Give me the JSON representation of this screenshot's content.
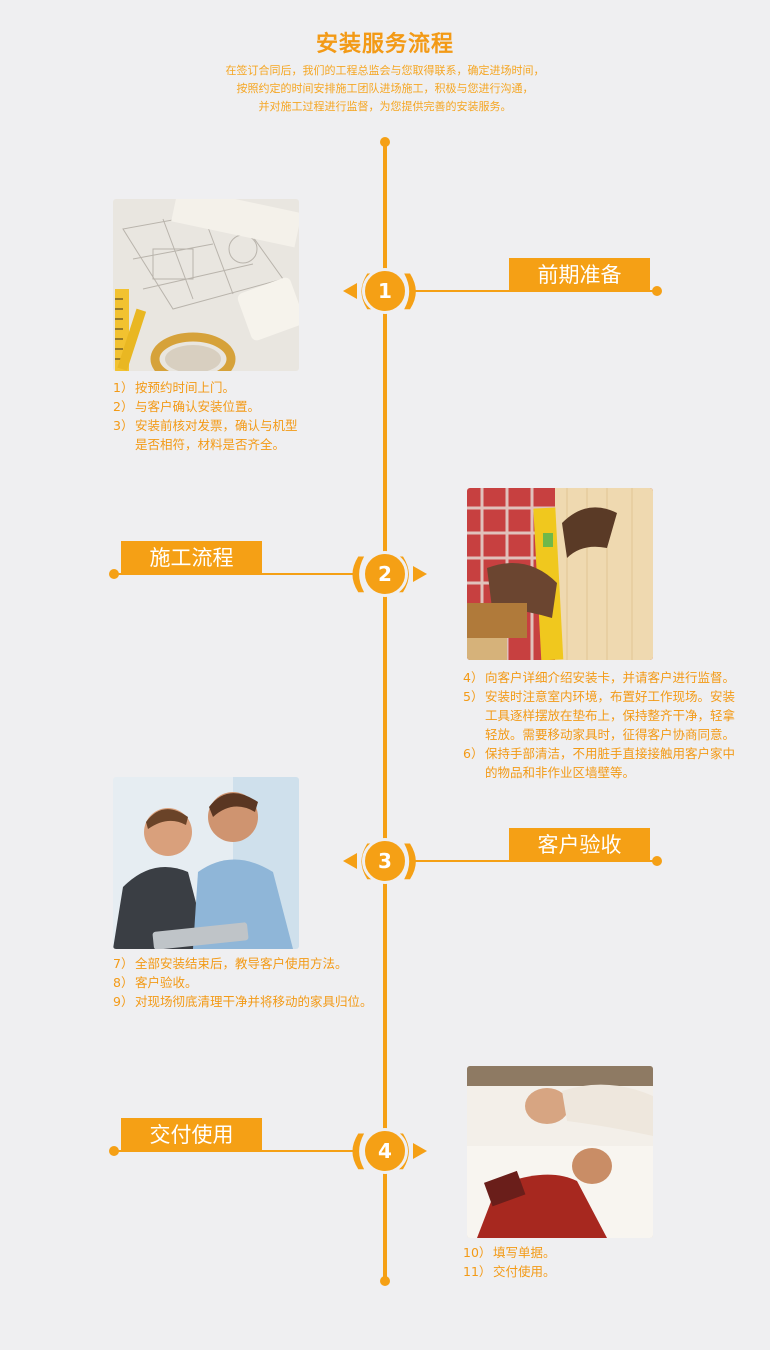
{
  "header": {
    "title": "安装服务流程",
    "intro": [
      "在签订合同后，我们的工程总监会与您取得联系，确定进场时间，",
      "按照约定的时间安排施工团队进场施工，积极与您进行沟通，",
      "并对施工过程进行监督，为您提供完善的安装服务。"
    ]
  },
  "stages": [
    {
      "num": "1",
      "label": "前期准备",
      "photo": "blueprints-photo",
      "steps": [
        {
          "n": "1）",
          "t": "按预约时间上门。"
        },
        {
          "n": "2）",
          "t": "与客户确认安装位置。"
        },
        {
          "n": "3）",
          "t": "安装前核对发票，确认与机型\n是否相符，材料是否齐全。"
        }
      ]
    },
    {
      "num": "2",
      "label": "施工流程",
      "photo": "worker-gloves-photo",
      "steps": [
        {
          "n": "4）",
          "t": "向客户详细介绍安装卡，并请客户进行监督。"
        },
        {
          "n": "5）",
          "t": "安装时注意室内环境，布置好工作现场。安装\n工具逐样摆放在垫布上，保持整齐干净，轻拿\n轻放。需要移动家具时，征得客户协商同意。"
        },
        {
          "n": "6）",
          "t": "保持手部清洁，不用脏手直接接触用客户家中\n的物品和非作业区墙壁等。"
        }
      ]
    },
    {
      "num": "3",
      "label": "客户验收",
      "photo": "customers-tablet-photo",
      "steps": [
        {
          "n": "7）",
          "t": "全部安装结束后，教导客户使用方法。"
        },
        {
          "n": "8）",
          "t": "客户验收。"
        },
        {
          "n": "9）",
          "t": "对现场彻底清理干净并将移动的家具归位。"
        }
      ]
    },
    {
      "num": "4",
      "label": "交付使用",
      "photo": "couple-relaxing-photo",
      "steps": [
        {
          "n": "10）",
          "t": "填写单据。"
        },
        {
          "n": "11）",
          "t": "交付使用。"
        }
      ]
    }
  ]
}
